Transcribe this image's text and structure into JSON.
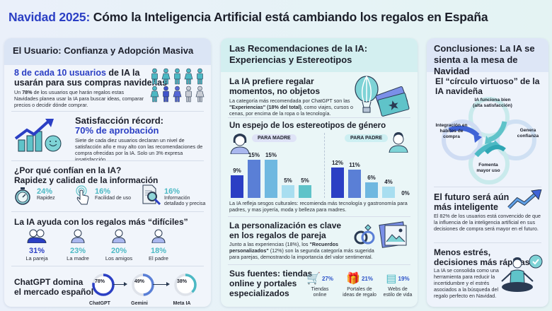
{
  "title": {
    "accent": "Navidad 2025:",
    "rest": " Cómo la Inteligencia Artificial está cambiando los regalos en España"
  },
  "colors": {
    "accent_blue": "#2b3fc4",
    "teal": "#4cb9c4",
    "light_blue": "#6a8be0",
    "grey": "#c8ccd4"
  },
  "panel_user": {
    "heading": "El Usuario: Confianza y Adopción Masiva",
    "adoption": {
      "highlight": "8 de cada 10 usuarios",
      "rest_line1": " de IA la",
      "line2": "usarán para sus compras navideñas",
      "body_bold": "78%",
      "body_pre": "Un ",
      "body_post": " de los usuarios que harán regalos estas Navidades planea usar la IA para buscar ideas, comparar precios o decidir dónde comprar."
    },
    "satisfaction": {
      "title": "Satisfacción récord:",
      "value": "70% de aprobación",
      "body": "Siete de cada diez usuarios declaran un nivel de satisfacción año e muy alto con las recomendaciones de compra ofrecidas por la IA. Solo un 3% expresa insatisfacción."
    },
    "trust": {
      "title_line1": "¿Por qué confían en la IA?",
      "title_line2": "Rapidez y calidad de la información",
      "items": [
        {
          "icon": "stopwatch-icon",
          "pct": "24%",
          "label": "Rapidez"
        },
        {
          "icon": "touch-icon",
          "pct": "16%",
          "label": "Facilidad de uso"
        },
        {
          "icon": "document-search-icon",
          "pct": "16%",
          "label": "Información detallado y precisa"
        }
      ]
    },
    "difficult": {
      "title": "La IA ayuda con los regalos más “difíciles”",
      "items": [
        {
          "icon": "couple-icon",
          "pct": "31%",
          "label": "La pareja",
          "color": "#2b3fc4"
        },
        {
          "icon": "mother-icon",
          "pct": "23%",
          "label": "La madre",
          "color": "#4cb9c4"
        },
        {
          "icon": "friends-icon",
          "pct": "20%",
          "label": "Los amigos",
          "color": "#4cb9c4"
        },
        {
          "icon": "father-icon",
          "pct": "18%",
          "label": "El padre",
          "color": "#4cb9c4"
        }
      ]
    },
    "market": {
      "title_line1": "ChatGPT domina",
      "title_line2": "el mercado español",
      "items": [
        {
          "label": "ChatGPT",
          "value": "78%",
          "pct": 78,
          "color": "#2b3fc4"
        },
        {
          "label": "Gemini",
          "value": "49%",
          "pct": 49,
          "color": "#5a7fd6"
        },
        {
          "label": "Meta IA",
          "value": "38%",
          "pct": 38,
          "color": "#4cb9c4"
        }
      ]
    }
  },
  "panel_recs": {
    "heading_line1": "Las Recomendaciones de la IA:",
    "heading_line2": "Experiencias y Estereotipos",
    "experiences": {
      "title_line1": "La IA prefiere regalar",
      "title_line2": "momentos, no objetos",
      "body_pre": "La categoría más recomendada por ChatGPT son las ",
      "body_bold": "\"Experiencias\" (18% del total)",
      "body_post": ", como viajes, cursos o cenas, por encima de la ropa o la tecnología."
    },
    "gender": {
      "title": "Un espejo de los estereotipos de género",
      "mother_tag": "PARA MADRE",
      "father_tag": "PARA PADRE",
      "caption": "La IA refleja sesgos culturales: recomienda más tecnología y gastronomía para padres, y mas joyería, moda y belleza para madres."
    },
    "personalization": {
      "title_line1": "La personalización es clave",
      "title_line2": "en los regalos de pareja",
      "body_pre": "Junto a las experiencias (18%), los ",
      "body_bold": "\"Recuerdos personalizados\"",
      "body_post": " (12%) son la segunda categoría más sugerida para parejas, demostrando la importancia del valor sentimental."
    },
    "sources": {
      "title_line1": "Sus fuentes: tiendas",
      "title_line2": "online y portales",
      "title_line3": "especializados",
      "items": [
        {
          "icon": "cart-icon",
          "pct": "27%",
          "label_line1": "Tiendas",
          "label_line2": "online"
        },
        {
          "icon": "gift-icon",
          "pct": "21%",
          "label_line1": "Portales de",
          "label_line2": "ideas de regalo"
        },
        {
          "icon": "web-icon",
          "pct": "19%",
          "label_line1": "Webs de",
          "label_line2": "estilo de vida"
        }
      ]
    }
  },
  "panel_conclusions": {
    "heading_line1": "Conclusiones: La IA se",
    "heading_line2": "sienta a la mesa de Navidad",
    "cycle": {
      "title_line1": "El “círculo virtuoso” de la",
      "title_line2": "IA navideña",
      "steps": [
        "IA funciona bien (alta satisfacción)",
        "Genera confianza",
        "Fomenta mayor uso",
        "Integración en hábitos de compra"
      ]
    },
    "future": {
      "title_line1": "El futuro será aún",
      "title_line2": "más inteligente",
      "body": "El 82% de los usuarios está convencido de que la influencia de la inteligencia artificial en sus decisiones de compra será mayor en el futuro."
    },
    "stress": {
      "title_line1": "Menos estrés,",
      "title_line2": "decisiones más rápidas",
      "body": "La IA se consolida como una herramienta para reducir la incertidumbre y el estrés asociados a la búsqueda del regalo perfecto en Navidad."
    }
  },
  "chart_data": {
    "type": "bar",
    "title": "Un espejo de los estereotipos de género",
    "series": [
      {
        "name": "Para madre",
        "categories": [
          "Joyería",
          "Moda",
          "Decoración/arte",
          "Tecnología",
          "Belleza"
        ],
        "values": [
          9,
          15,
          15,
          5,
          5
        ]
      },
      {
        "name": "Para padre",
        "categories": [
          "Tecnología",
          "Gastronomía",
          "Moda",
          "Decoración/arte",
          "Belleza"
        ],
        "values": [
          12,
          11,
          6,
          4,
          0
        ]
      }
    ],
    "ylabel": "%"
  }
}
